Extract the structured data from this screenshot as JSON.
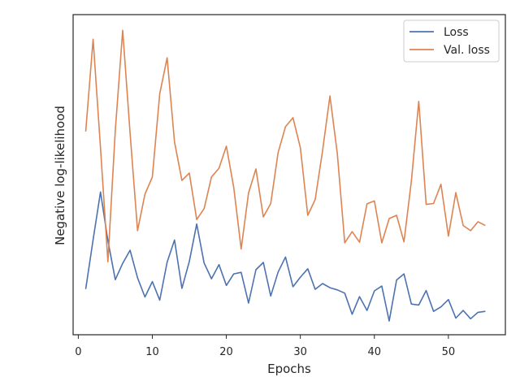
{
  "chart_data": {
    "type": "line",
    "title": "",
    "xlabel": "Epochs",
    "ylabel": "Negative log-likelihood",
    "xlim": [
      -0.7,
      57.7
    ],
    "ylim": [
      0,
      100
    ],
    "x_ticks": [
      0,
      10,
      20,
      30,
      40,
      50
    ],
    "y_ticks_shown": false,
    "grid": false,
    "legend_position": "top-right",
    "x": [
      1,
      2,
      3,
      4,
      5,
      6,
      7,
      8,
      9,
      10,
      11,
      12,
      13,
      14,
      15,
      16,
      17,
      18,
      19,
      20,
      21,
      22,
      23,
      24,
      25,
      26,
      27,
      28,
      29,
      30,
      31,
      32,
      33,
      34,
      35,
      36,
      37,
      38,
      39,
      40,
      41,
      42,
      43,
      44,
      45,
      46,
      47,
      48,
      49,
      50,
      51,
      52,
      53,
      54,
      55
    ],
    "series": [
      {
        "name": "Loss",
        "color": "#4c72b0",
        "values": [
          14.3,
          29.7,
          44.6,
          29.4,
          17.2,
          22.3,
          26.4,
          17.8,
          11.8,
          16.6,
          10.8,
          22.7,
          29.6,
          14.5,
          22.9,
          34.6,
          22.4,
          17.5,
          21.9,
          15.4,
          19.0,
          19.5,
          9.9,
          20.3,
          22.6,
          12.1,
          19.6,
          24.3,
          15.0,
          18.0,
          20.6,
          14.2,
          16.0,
          14.7,
          14.0,
          13.0,
          6.4,
          11.9,
          7.6,
          13.7,
          15.2,
          4.3,
          17.1,
          19.0,
          9.6,
          9.3,
          13.8,
          7.3,
          8.7,
          11.0,
          5.2,
          7.6,
          5.0,
          7.0,
          7.3
        ]
      },
      {
        "name": "Val. loss",
        "color": "#dd8452",
        "values": [
          63.5,
          92.3,
          58.4,
          22.8,
          63.8,
          95.1,
          63.0,
          32.5,
          43.9,
          49.3,
          75.3,
          86.5,
          60.2,
          48.2,
          50.5,
          36.0,
          39.4,
          49.3,
          52.0,
          58.9,
          46.0,
          26.8,
          44.3,
          51.8,
          36.8,
          41.0,
          56.9,
          65.0,
          67.8,
          58.4,
          37.3,
          42.2,
          57.5,
          74.6,
          56.5,
          28.7,
          32.2,
          28.9,
          40.9,
          41.8,
          28.7,
          36.3,
          37.3,
          29.0,
          48.0,
          72.9,
          40.7,
          41.0,
          47.0,
          30.8,
          44.4,
          34.1,
          32.5,
          35.3,
          34.1
        ]
      }
    ]
  }
}
